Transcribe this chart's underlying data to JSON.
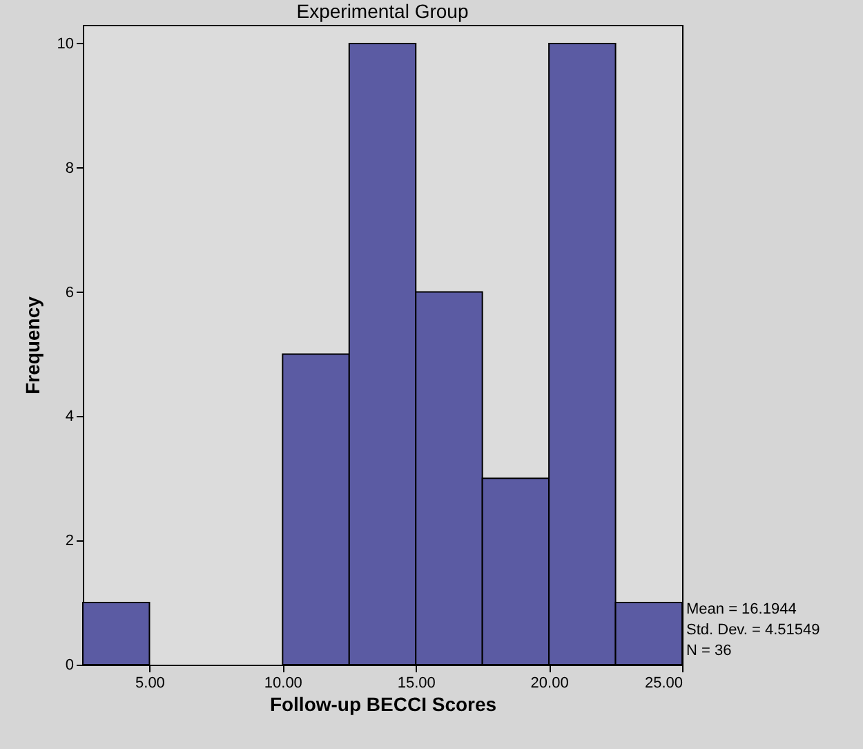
{
  "chart_data": {
    "type": "histogram",
    "title": "Experimental Group",
    "xlabel": "Follow-up BECCI Scores",
    "ylabel": "Frequency",
    "bins": [
      2.5,
      5,
      7.5,
      10,
      12.5,
      15,
      17.5,
      20,
      22.5,
      25
    ],
    "values": [
      1,
      0,
      0,
      5,
      10,
      6,
      3,
      10,
      1
    ],
    "color": "#5b5ba3",
    "xlim": [
      2.5,
      25
    ],
    "xticks": [
      {
        "value": 5,
        "label": "5.00"
      },
      {
        "value": 10,
        "label": "10.00"
      },
      {
        "value": 15,
        "label": "15.00"
      },
      {
        "value": 20,
        "label": "20.00"
      },
      {
        "value": 25,
        "label": "25.00"
      }
    ],
    "ylim": [
      0,
      10.3
    ],
    "yticks": [
      0,
      2,
      4,
      6,
      8,
      10
    ],
    "annotations": [
      "Mean = 16.1944",
      "Std. Dev. = 4.51549",
      "N = 36"
    ]
  }
}
